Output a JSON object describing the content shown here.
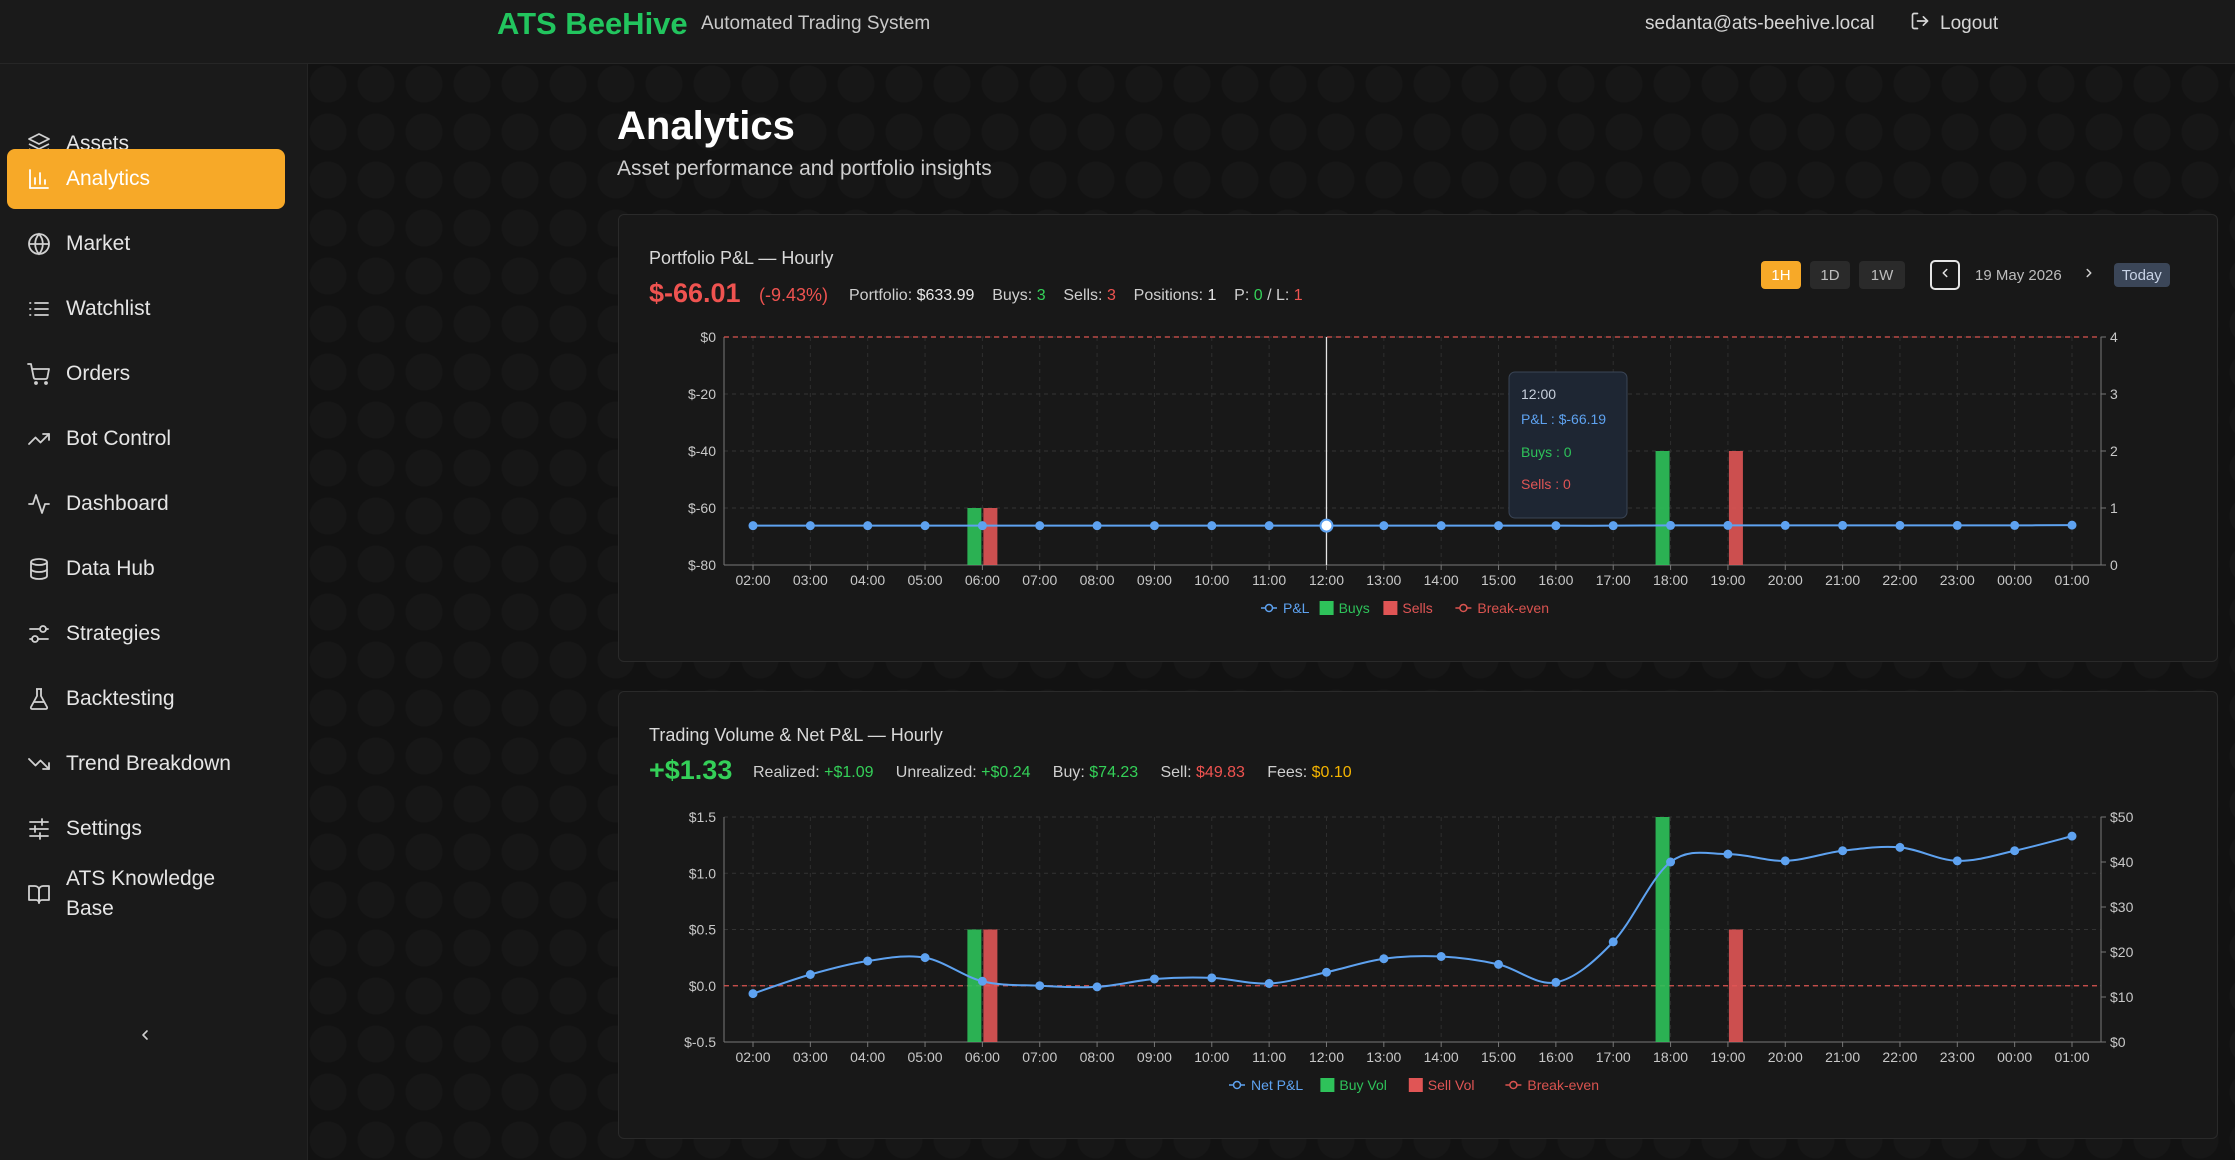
{
  "header": {
    "brand": "ATS BeeHive",
    "tagline": "Automated Trading System",
    "user_email": "sedanta@ats-beehive.local",
    "logout_label": "Logout"
  },
  "sidebar": {
    "items": [
      {
        "label": "Assets",
        "icon": "layers-icon"
      },
      {
        "label": "Analytics",
        "icon": "bar-chart-icon",
        "active": true
      },
      {
        "label": "Market",
        "icon": "globe-icon"
      },
      {
        "label": "Watchlist",
        "icon": "list-icon"
      },
      {
        "label": "Orders",
        "icon": "cart-icon"
      },
      {
        "label": "Bot Control",
        "icon": "trending-up-icon"
      },
      {
        "label": "Dashboard",
        "icon": "activity-icon"
      },
      {
        "label": "Data Hub",
        "icon": "database-icon"
      },
      {
        "label": "Strategies",
        "icon": "sliders-icon"
      },
      {
        "label": "Backtesting",
        "icon": "flask-icon"
      },
      {
        "label": "Trend Breakdown",
        "icon": "trending-down-icon"
      },
      {
        "label": "Settings",
        "icon": "settings-sliders-icon"
      },
      {
        "label": "ATS Knowledge",
        "label2": "Base",
        "icon": "book-icon"
      }
    ]
  },
  "page": {
    "title": "Analytics",
    "subtitle": "Asset performance and portfolio insights"
  },
  "pnl_card": {
    "title": "Portfolio P&L — Hourly",
    "value": "$-66.01",
    "percent": "(-9.43%)",
    "portfolio_label": "Portfolio:",
    "portfolio_value": "$633.99",
    "buys_label": "Buys:",
    "buys_value": "3",
    "sells_label": "Sells:",
    "sells_value": "3",
    "positions_label": "Positions:",
    "positions_value": "1",
    "pl_label": "P:",
    "p_value": "0",
    "l_sep": "/ L:",
    "l_value": "1",
    "range_options": [
      "1H",
      "1D",
      "1W"
    ],
    "selected_range": "1H",
    "date": "19 May 2026",
    "today_label": "Today",
    "tooltip": {
      "time": "12:00",
      "pnl": "P&L : $-66.19",
      "buys": "Buys : 0",
      "sells": "Sells : 0"
    }
  },
  "volume_card": {
    "title": "Trading Volume & Net P&L — Hourly",
    "value": "+$1.33",
    "realized_label": "Realized:",
    "realized_value": "+$1.09",
    "unrealized_label": "Unrealized:",
    "unrealized_value": "+$0.24",
    "buy_label": "Buy:",
    "buy_value": "$74.23",
    "sell_label": "Sell:",
    "sell_value": "$49.83",
    "fees_label": "Fees:",
    "fees_value": "$0.10"
  },
  "colors": {
    "accent": "#f7a928",
    "brand": "#22c55e",
    "pnl_line": "#5ea2f0",
    "buy": "#2ec25a",
    "sell": "#e05555",
    "break_even": "#d9534f"
  },
  "chart_data": [
    {
      "type": "line",
      "title": "Portfolio P&L — Hourly",
      "x": [
        "02:00",
        "03:00",
        "04:00",
        "05:00",
        "06:00",
        "07:00",
        "08:00",
        "09:00",
        "10:00",
        "11:00",
        "12:00",
        "13:00",
        "14:00",
        "15:00",
        "16:00",
        "17:00",
        "18:00",
        "19:00",
        "20:00",
        "21:00",
        "22:00",
        "23:00",
        "00:00",
        "01:00"
      ],
      "y_left_ticks": [
        "$0",
        "$-20",
        "$-40",
        "$-60",
        "$-80"
      ],
      "y_right_ticks": [
        "4",
        "3",
        "2",
        "1",
        "0"
      ],
      "ylim_left": [
        -80,
        0
      ],
      "ylim_right": [
        0,
        4
      ],
      "series": [
        {
          "name": "P&L",
          "kind": "line",
          "axis": "left",
          "values": [
            -66.2,
            -66.2,
            -66.2,
            -66.2,
            -66.2,
            -66.2,
            -66.2,
            -66.2,
            -66.2,
            -66.2,
            -66.19,
            -66.2,
            -66.2,
            -66.2,
            -66.2,
            -66.2,
            -66.1,
            -66.1,
            -66.1,
            -66.1,
            -66.1,
            -66.1,
            -66.1,
            -66.01
          ]
        },
        {
          "name": "Buys",
          "kind": "bar",
          "axis": "right",
          "values": [
            0,
            0,
            0,
            0,
            1,
            0,
            0,
            0,
            0,
            0,
            0,
            0,
            0,
            0,
            0,
            0,
            2,
            0,
            0,
            0,
            0,
            0,
            0,
            0
          ]
        },
        {
          "name": "Sells",
          "kind": "bar",
          "axis": "right",
          "values": [
            0,
            0,
            0,
            0,
            1,
            0,
            0,
            0,
            0,
            0,
            0,
            0,
            0,
            0,
            0,
            0,
            0,
            2,
            0,
            0,
            0,
            0,
            0,
            0
          ]
        },
        {
          "name": "Break-even",
          "kind": "reference",
          "axis": "left",
          "value": 0
        }
      ],
      "hover_index": 10,
      "grid": true,
      "legend": "bottom-center"
    },
    {
      "type": "line",
      "title": "Trading Volume & Net P&L — Hourly",
      "x": [
        "02:00",
        "03:00",
        "04:00",
        "05:00",
        "06:00",
        "07:00",
        "08:00",
        "09:00",
        "10:00",
        "11:00",
        "12:00",
        "13:00",
        "14:00",
        "15:00",
        "16:00",
        "17:00",
        "18:00",
        "19:00",
        "20:00",
        "21:00",
        "22:00",
        "23:00",
        "00:00",
        "01:00"
      ],
      "y_left_ticks": [
        "$1.5",
        "$1.0",
        "$0.5",
        "$0.0",
        "$-0.5"
      ],
      "y_right_ticks": [
        "$50",
        "$40",
        "$30",
        "$20",
        "$10",
        "$0"
      ],
      "ylim_left": [
        -0.5,
        1.5
      ],
      "ylim_right": [
        0,
        50
      ],
      "series": [
        {
          "name": "Net P&L",
          "kind": "line",
          "axis": "left",
          "values": [
            -0.07,
            0.1,
            0.22,
            0.25,
            0.04,
            0.0,
            -0.01,
            0.06,
            0.07,
            0.02,
            0.12,
            0.24,
            0.26,
            0.19,
            0.03,
            0.39,
            1.1,
            1.17,
            1.11,
            1.2,
            1.23,
            1.11,
            1.2,
            1.33
          ]
        },
        {
          "name": "Buy Vol",
          "kind": "bar",
          "axis": "right",
          "values": [
            0,
            0,
            0,
            0,
            25,
            0,
            0,
            0,
            0,
            0,
            0,
            0,
            0,
            0,
            0,
            0,
            50,
            0,
            0,
            0,
            0,
            0,
            0,
            0
          ]
        },
        {
          "name": "Sell Vol",
          "kind": "bar",
          "axis": "right",
          "values": [
            0,
            0,
            0,
            0,
            25,
            0,
            0,
            0,
            0,
            0,
            0,
            0,
            0,
            0,
            0,
            0,
            0,
            25,
            0,
            0,
            0,
            0,
            0,
            0
          ]
        },
        {
          "name": "Break-even",
          "kind": "reference",
          "axis": "left",
          "value": 0
        }
      ],
      "grid": true,
      "legend": "bottom-center"
    }
  ]
}
